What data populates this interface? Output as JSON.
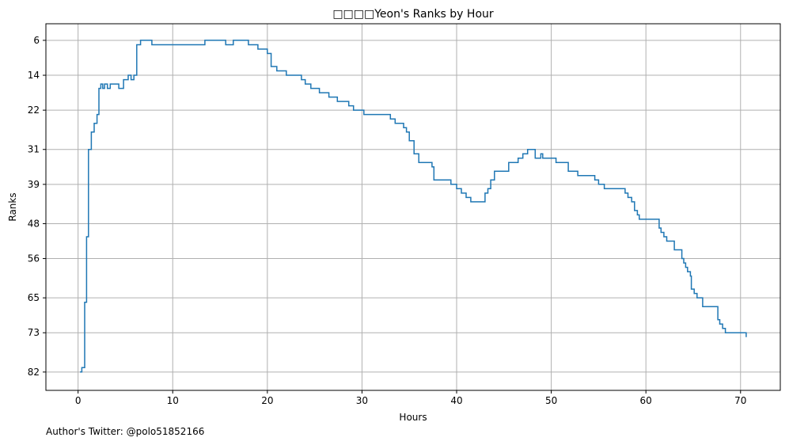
{
  "chart_data": {
    "type": "line",
    "step": true,
    "title": "□□□□Yeon's Ranks by Hour",
    "xlabel": "Hours",
    "ylabel": "Ranks",
    "xlim": [
      -3.4,
      74.2
    ],
    "ylim": [
      86.2,
      2.2
    ],
    "y_inverted": true,
    "grid": true,
    "x_ticks": [
      0,
      10,
      20,
      30,
      40,
      50,
      60,
      70
    ],
    "y_ticks": [
      6,
      14,
      22,
      31,
      39,
      48,
      56,
      65,
      73,
      82
    ],
    "series": [
      {
        "color": "#1f77b4",
        "x": [
          0.2,
          0.4,
          0.7,
          0.9,
          1.1,
          1.4,
          1.7,
          2.0,
          2.2,
          2.4,
          2.6,
          2.8,
          3.1,
          3.4,
          3.7,
          4.3,
          4.8,
          5.3,
          5.6,
          5.9,
          6.2,
          6.6,
          7.8,
          10.0,
          13.4,
          15.6,
          16.4,
          18.0,
          19.0,
          20.0,
          20.4,
          21.0,
          22.0,
          23.3,
          23.6,
          24.0,
          24.6,
          25.5,
          26.5,
          27.4,
          28.6,
          29.1,
          30.2,
          32.8,
          33.0,
          33.5,
          34.4,
          34.7,
          35.0,
          35.5,
          36.0,
          37.4,
          37.6,
          38.9,
          39.4,
          40.0,
          40.5,
          41.0,
          41.5,
          42.5,
          43.0,
          43.3,
          43.6,
          44.0,
          44.5,
          45.5,
          46.5,
          47.0,
          47.5,
          48.3,
          48.9,
          49.1,
          50.5,
          51.8,
          52.8,
          54.1,
          54.6,
          55.0,
          55.6,
          57.8,
          58.1,
          58.5,
          58.8,
          59.1,
          59.3,
          60.8,
          61.4,
          61.6,
          61.9,
          62.2,
          63.0,
          63.8,
          64.0,
          64.2,
          64.4,
          64.7,
          64.8,
          65.1,
          65.4,
          66.0,
          67.2,
          67.6,
          67.8,
          68.1,
          68.4,
          70.2,
          70.6
        ],
        "y": [
          82,
          81,
          66,
          51,
          31,
          27,
          25,
          23,
          17,
          16,
          17,
          16,
          17,
          16,
          16,
          17,
          15,
          14,
          15,
          14,
          7,
          6,
          7,
          7,
          6,
          7,
          6,
          7,
          8,
          9,
          12,
          13,
          14,
          14,
          15,
          16,
          17,
          18,
          19,
          20,
          21,
          22,
          23,
          23,
          24,
          25,
          26,
          27,
          29,
          32,
          34,
          35,
          38,
          38,
          39,
          40,
          41,
          42,
          43,
          43,
          41,
          40,
          38,
          36,
          36,
          34,
          33,
          32,
          31,
          33,
          32,
          33,
          34,
          36,
          37,
          37,
          38,
          39,
          40,
          41,
          42,
          43,
          45,
          46,
          47,
          47,
          49,
          50,
          51,
          52,
          54,
          56,
          57,
          58,
          59,
          60,
          63,
          64,
          65,
          67,
          67,
          70,
          71,
          72,
          73,
          73,
          74
        ]
      }
    ]
  },
  "footer": {
    "author_note": "Author's Twitter: @polo51852166"
  }
}
